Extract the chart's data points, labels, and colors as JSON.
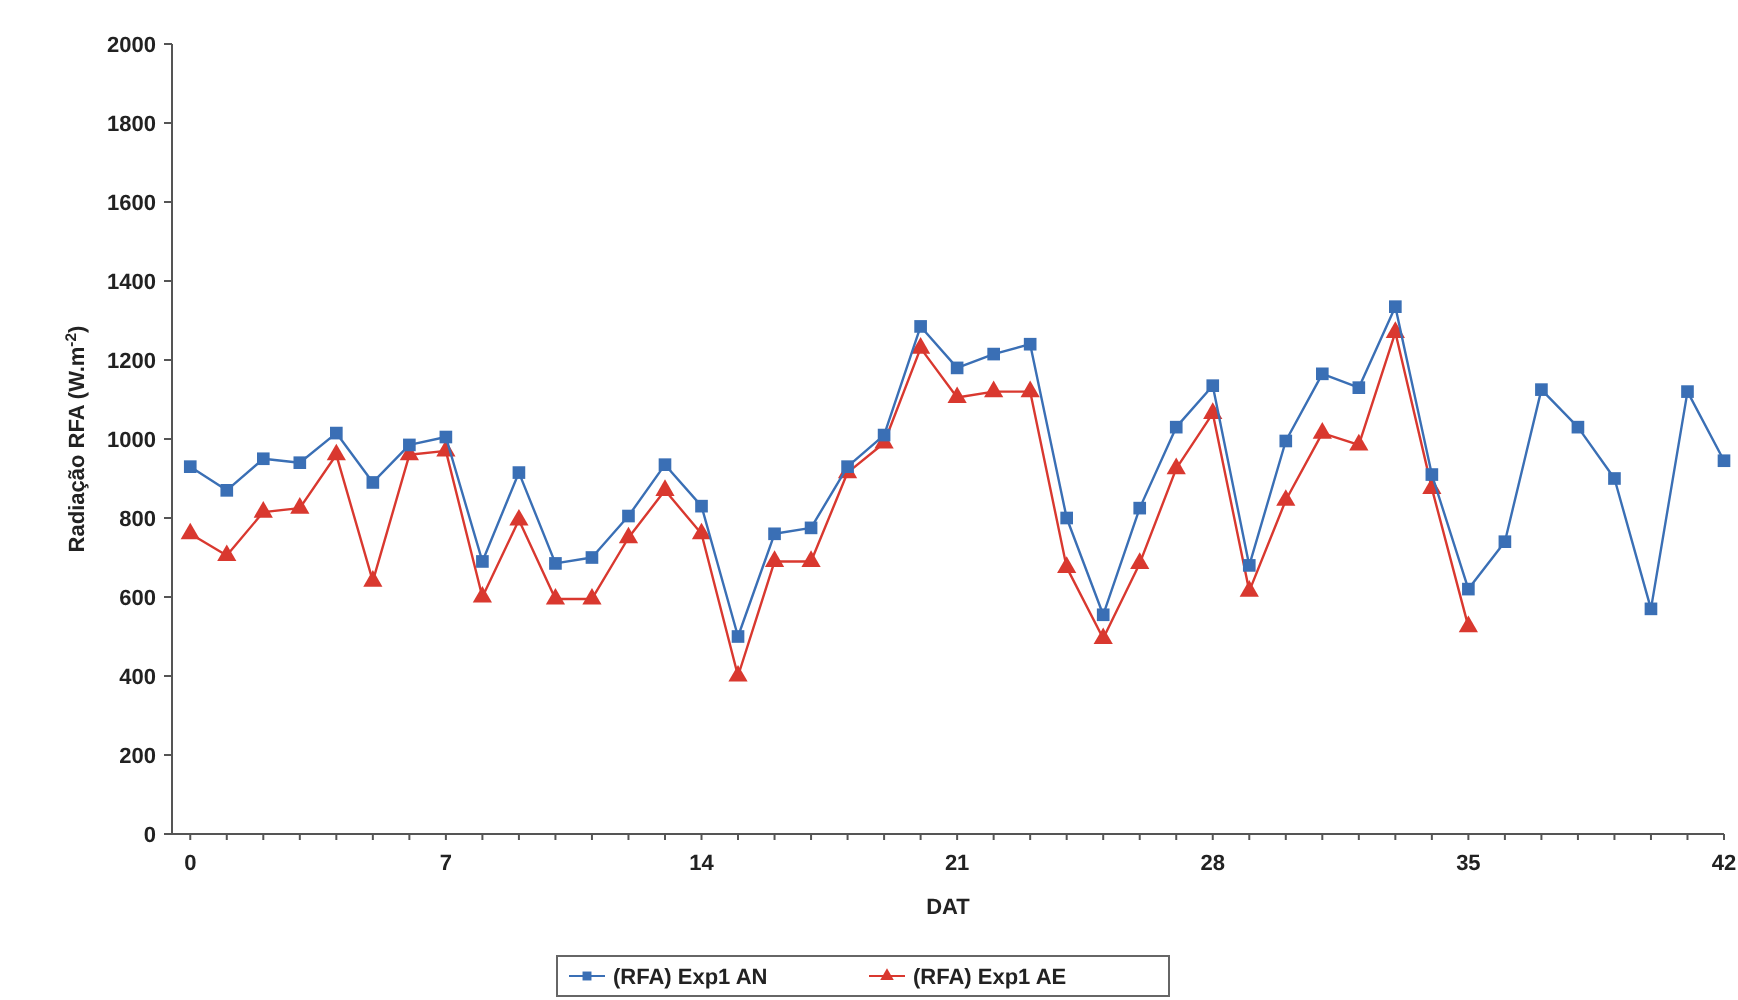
{
  "chart_data": {
    "type": "line",
    "xlabel": "DAT",
    "ylabel": "Radiação RFA (W.m$^{-2}$)",
    "x": [
      0,
      1,
      2,
      3,
      4,
      5,
      6,
      7,
      8,
      9,
      10,
      11,
      12,
      13,
      14,
      15,
      16,
      17,
      18,
      19,
      20,
      21,
      22,
      23,
      24,
      25,
      26,
      27,
      28,
      29,
      30,
      31,
      32,
      33,
      34,
      35,
      36,
      37,
      38,
      39,
      40,
      41,
      42
    ],
    "xlim": [
      -0.5,
      42
    ],
    "xticks": [
      0,
      7,
      14,
      21,
      28,
      35,
      42
    ],
    "ylim": [
      0,
      2000
    ],
    "yticks": [
      0,
      200,
      400,
      600,
      800,
      1000,
      1200,
      1400,
      1600,
      1800,
      2000
    ],
    "grid": false,
    "legend": "bottom",
    "series": [
      {
        "name": "(RFA) Exp1 AN",
        "color": "#3a6fb5",
        "marker": "square",
        "values": [
          930,
          870,
          950,
          940,
          1015,
          890,
          985,
          1005,
          690,
          915,
          685,
          700,
          805,
          935,
          830,
          500,
          760,
          775,
          930,
          1010,
          1285,
          1180,
          1215,
          1240,
          800,
          555,
          825,
          1030,
          1135,
          680,
          995,
          1165,
          1130,
          1335,
          910,
          620,
          740,
          1125,
          1030,
          900,
          570,
          1120,
          945
        ]
      },
      {
        "name": "(RFA) Exp1 AE",
        "color": "#d9382f",
        "marker": "triangle",
        "values": [
          760,
          705,
          815,
          825,
          960,
          640,
          960,
          970,
          600,
          795,
          595,
          595,
          750,
          870,
          760,
          400,
          690,
          690,
          915,
          990,
          1230,
          1105,
          1120,
          1120,
          675,
          495,
          685,
          925,
          1065,
          615,
          845,
          1015,
          985,
          1270,
          875,
          525,
          null,
          null,
          null,
          null,
          null,
          null,
          null
        ]
      }
    ]
  }
}
